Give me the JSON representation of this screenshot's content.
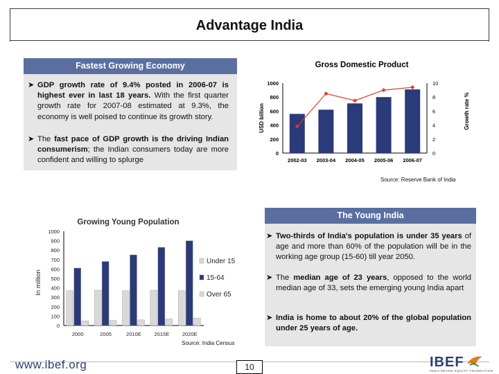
{
  "page": {
    "title": "Advantage India",
    "page_number": "10",
    "website": "www.ibef.org",
    "logo_text": "IBEF",
    "logo_tagline": "INDIA BRAND EQUITY FOUNDATION"
  },
  "colors": {
    "header_bar": "#5a6fa0",
    "panel_bg": "#e6e6e6",
    "bar_fill": "#2b3a78",
    "line_color": "#d93a2a",
    "logo": "#2b3f73",
    "logo_accent": "#e07b1a"
  },
  "growth_panel": {
    "header": "Fastest Growing Economy",
    "bullet1_bold": "GDP growth rate of 9.4% posted in 2006-07 is highest ever in last 18 years.",
    "bullet1_rest": " With the first quarter growth rate for 2007-08 estimated at 9.3%, the economy is well poised to continue its growth story.",
    "bullet2_pre": "The ",
    "bullet2_bold": "fast pace of GDP growth is the driving Indian consumerism",
    "bullet2_rest": "; the Indian consumers today are more confident and willing to splurge"
  },
  "young_panel": {
    "header": "The Young India",
    "bullet1_bold": "Two-thirds of India's population is under 35 years",
    "bullet1_rest": " of age and more than 60% of the population will be in the working age group (15-60) till year 2050.",
    "bullet2_pre": "The ",
    "bullet2_bold": "median age of 23 years",
    "bullet2_rest": ", opposed to the world median age of 33, sets the emerging young India apart",
    "bullet3_bold": "India is home to about 20% of the global population under 25 years of age."
  },
  "chart_data": [
    {
      "type": "bar",
      "title": "Gross Domestic Product",
      "categories": [
        "2002-03",
        "2003-04",
        "2004-05",
        "2005-06",
        "2006-07"
      ],
      "ylabel": "USD billion",
      "y2label": "Growth rate %",
      "ylim": [
        0,
        1000
      ],
      "yticks": [
        0,
        200,
        400,
        600,
        800,
        1000
      ],
      "y2lim": [
        0,
        10
      ],
      "y2ticks": [
        0,
        2,
        4,
        6,
        8,
        10
      ],
      "series": [
        {
          "values": [
            560,
            620,
            710,
            800,
            910
          ],
          "kind": "bar"
        },
        {
          "values": [
            3.8,
            8.5,
            7.5,
            9.0,
            9.4
          ],
          "kind": "line",
          "axis": "right"
        }
      ],
      "source": "Source: Reserve Bank of India",
      "grid": false
    },
    {
      "type": "bar",
      "title": "Growing Young Population",
      "categories": [
        "2000",
        "2005",
        "2010E",
        "2015E",
        "2020E"
      ],
      "ylabel": "In million",
      "ylim": [
        0,
        1000
      ],
      "yticks": [
        0,
        100,
        200,
        300,
        400,
        500,
        600,
        700,
        800,
        900,
        1000
      ],
      "series": [
        {
          "name": "Under 15",
          "values": [
            370,
            375,
            370,
            375,
            370
          ],
          "color": "#d9d9d9"
        },
        {
          "name": "15-64",
          "values": [
            610,
            680,
            750,
            830,
            900
          ],
          "color": "#2b3a78"
        },
        {
          "name": "Over 65",
          "values": [
            50,
            55,
            60,
            70,
            80
          ],
          "color": "#d9d9d9"
        }
      ],
      "legend_position": "right",
      "source": "Source: India Census",
      "grid": false
    }
  ]
}
